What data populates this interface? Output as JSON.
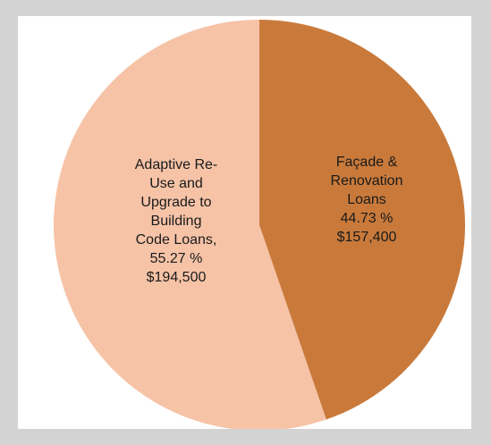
{
  "chart_data": {
    "type": "pie",
    "title": "",
    "start_angle_deg": 0,
    "direction": "clockwise",
    "slices": [
      {
        "name": "Façade & Renovation Loans",
        "percent": 44.73,
        "value": 157400,
        "color": "#c97a3b",
        "label_lines": [
          "Façade &",
          "Renovation",
          "Loans",
          "44.73 %",
          "$157,400"
        ]
      },
      {
        "name": "Adaptive Re-Use and Upgrade to Building Code Loans",
        "percent": 55.27,
        "value": 194500,
        "color": "#f6c3a7",
        "label_lines": [
          "Adaptive Re-",
          "Use and",
          "Upgrade to",
          "Building",
          "Code Loans,",
          "55.27 %",
          "$194,500"
        ]
      }
    ]
  }
}
